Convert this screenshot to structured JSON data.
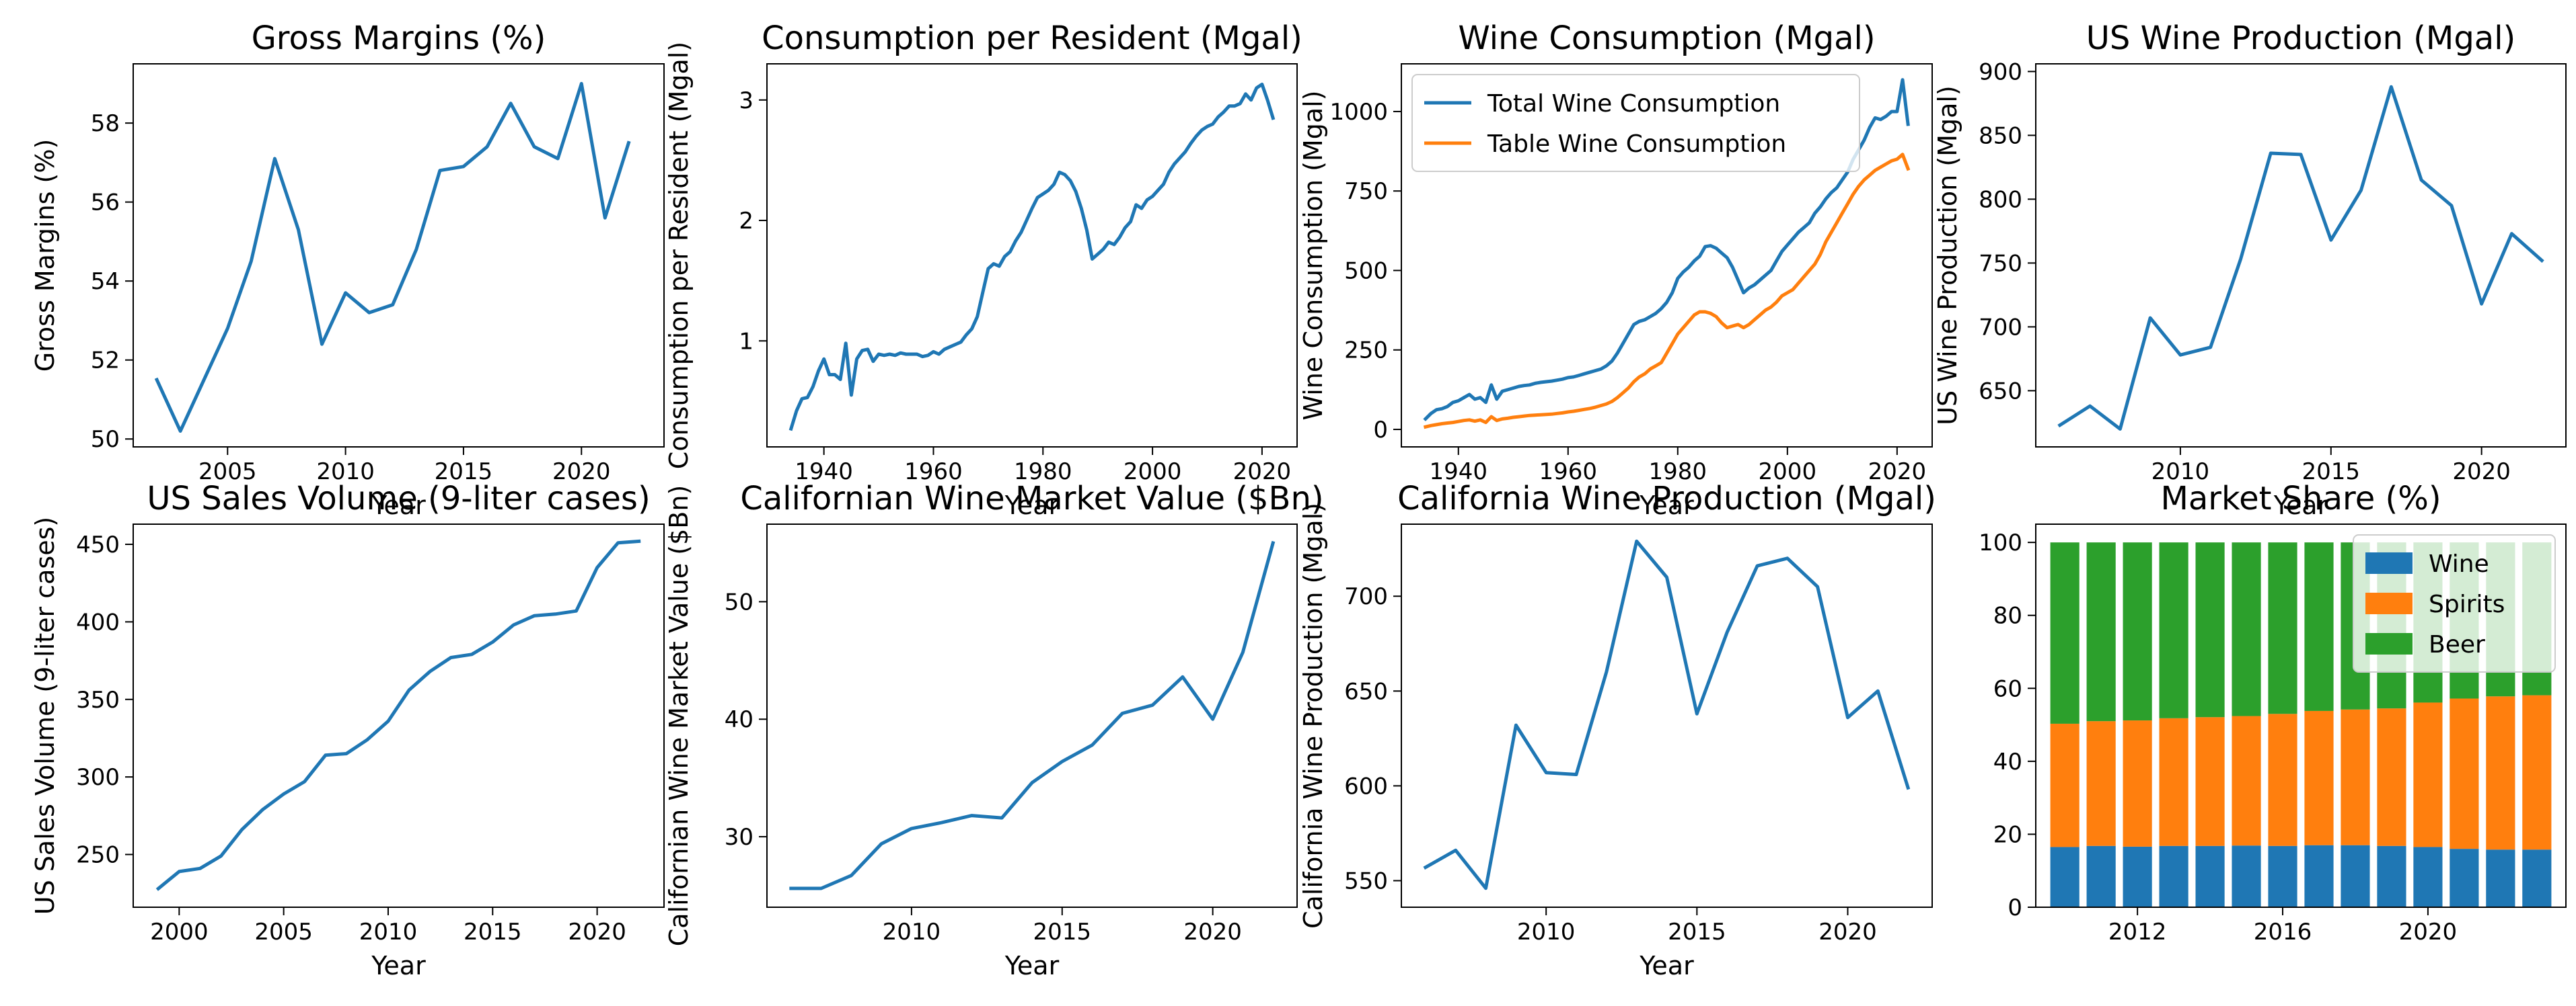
{
  "colors": {
    "c0": "#1f77b4",
    "c1": "#ff7f0e",
    "c2": "#2ca02c"
  },
  "chart_data": [
    {
      "type": "line",
      "title": "Gross Margins (%)",
      "xlabel": "Year",
      "ylabel": "Gross Margins (%)",
      "xlim": [
        2001,
        2023.5
      ],
      "ylim": [
        49.8,
        59.5
      ],
      "xticks": [
        2005,
        2010,
        2015,
        2020
      ],
      "yticks": [
        50,
        52,
        54,
        56,
        58
      ],
      "series": [
        {
          "color": "#1f77b4",
          "x": [
            2002,
            2003,
            2004,
            2005,
            2006,
            2007,
            2008,
            2009,
            2010,
            2011,
            2012,
            2013,
            2014,
            2015,
            2016,
            2017,
            2018,
            2019,
            2020,
            2021,
            2022
          ],
          "y": [
            51.5,
            50.2,
            51.5,
            52.8,
            54.5,
            57.1,
            55.3,
            52.4,
            53.7,
            53.2,
            53.4,
            54.8,
            56.8,
            56.9,
            57.4,
            58.5,
            57.4,
            57.1,
            59.0,
            55.6,
            57.5
          ]
        }
      ]
    },
    {
      "type": "line",
      "title": "Consumption per Resident (Mgal)",
      "xlabel": "Year",
      "ylabel": "Consumption per Resident (Mgal)",
      "xlim": [
        1929.6,
        2026.4
      ],
      "ylim": [
        0.12,
        3.3
      ],
      "xticks": [
        1940,
        1960,
        1980,
        2000,
        2020
      ],
      "yticks": [
        1,
        2,
        3
      ],
      "series": [
        {
          "color": "#1f77b4",
          "x": [
            1934,
            1935,
            1936,
            1937,
            1938,
            1939,
            1940,
            1941,
            1942,
            1943,
            1944,
            1945,
            1946,
            1947,
            1948,
            1949,
            1950,
            1951,
            1952,
            1953,
            1954,
            1955,
            1956,
            1957,
            1958,
            1959,
            1960,
            1961,
            1962,
            1963,
            1964,
            1965,
            1966,
            1967,
            1968,
            1969,
            1970,
            1971,
            1972,
            1973,
            1974,
            1975,
            1976,
            1977,
            1978,
            1979,
            1980,
            1981,
            1982,
            1983,
            1984,
            1985,
            1986,
            1987,
            1988,
            1989,
            1990,
            1991,
            1992,
            1993,
            1994,
            1995,
            1996,
            1997,
            1998,
            1999,
            2000,
            2001,
            2002,
            2003,
            2004,
            2005,
            2006,
            2007,
            2008,
            2009,
            2010,
            2011,
            2012,
            2013,
            2014,
            2015,
            2016,
            2017,
            2018,
            2019,
            2020,
            2021,
            2022
          ],
          "y": [
            0.27,
            0.42,
            0.52,
            0.53,
            0.62,
            0.75,
            0.85,
            0.72,
            0.72,
            0.68,
            0.98,
            0.55,
            0.85,
            0.92,
            0.93,
            0.83,
            0.89,
            0.88,
            0.89,
            0.88,
            0.9,
            0.89,
            0.89,
            0.89,
            0.87,
            0.88,
            0.91,
            0.89,
            0.93,
            0.95,
            0.97,
            0.99,
            1.05,
            1.1,
            1.2,
            1.4,
            1.6,
            1.64,
            1.62,
            1.7,
            1.74,
            1.83,
            1.9,
            2.0,
            2.1,
            2.19,
            2.22,
            2.25,
            2.3,
            2.4,
            2.38,
            2.33,
            2.24,
            2.1,
            1.92,
            1.68,
            1.72,
            1.76,
            1.82,
            1.8,
            1.86,
            1.94,
            1.99,
            2.13,
            2.1,
            2.17,
            2.2,
            2.25,
            2.3,
            2.4,
            2.47,
            2.52,
            2.57,
            2.64,
            2.7,
            2.75,
            2.78,
            2.8,
            2.86,
            2.9,
            2.95,
            2.95,
            2.97,
            3.05,
            3.0,
            3.1,
            3.13,
            3.0,
            2.85
          ]
        }
      ]
    },
    {
      "type": "line",
      "title": "Wine Consumption (Mgal)",
      "xlabel": "Year",
      "ylabel": "Wine Consumption (Mgal)",
      "xlim": [
        1929.6,
        2026.4
      ],
      "ylim": [
        -55,
        1150
      ],
      "xticks": [
        1940,
        1960,
        1980,
        2000,
        2020
      ],
      "yticks": [
        0,
        250,
        500,
        750,
        1000
      ],
      "legend": "top-left",
      "series": [
        {
          "name": "Total Wine Consumption",
          "color": "#1f77b4",
          "x": [
            1934,
            1935,
            1936,
            1937,
            1938,
            1939,
            1940,
            1941,
            1942,
            1943,
            1944,
            1945,
            1946,
            1947,
            1948,
            1949,
            1950,
            1951,
            1952,
            1953,
            1954,
            1955,
            1956,
            1957,
            1958,
            1959,
            1960,
            1961,
            1962,
            1963,
            1964,
            1965,
            1966,
            1967,
            1968,
            1969,
            1970,
            1971,
            1972,
            1973,
            1974,
            1975,
            1976,
            1977,
            1978,
            1979,
            1980,
            1981,
            1982,
            1983,
            1984,
            1985,
            1986,
            1987,
            1988,
            1989,
            1990,
            1991,
            1992,
            1993,
            1994,
            1995,
            1996,
            1997,
            1998,
            1999,
            2000,
            2001,
            2002,
            2003,
            2004,
            2005,
            2006,
            2007,
            2008,
            2009,
            2010,
            2011,
            2012,
            2013,
            2014,
            2015,
            2016,
            2017,
            2018,
            2019,
            2020,
            2021,
            2022
          ],
          "y": [
            33,
            50,
            62,
            65,
            72,
            85,
            90,
            100,
            110,
            95,
            100,
            85,
            140,
            95,
            120,
            125,
            130,
            135,
            138,
            140,
            145,
            148,
            150,
            152,
            155,
            158,
            163,
            165,
            170,
            175,
            180,
            185,
            190,
            200,
            215,
            240,
            270,
            300,
            330,
            340,
            345,
            355,
            365,
            380,
            400,
            430,
            475,
            495,
            510,
            530,
            545,
            575,
            578,
            570,
            555,
            540,
            510,
            470,
            430,
            445,
            455,
            470,
            485,
            500,
            530,
            560,
            580,
            600,
            620,
            635,
            650,
            680,
            700,
            725,
            745,
            760,
            785,
            810,
            850,
            880,
            910,
            950,
            980,
            975,
            985,
            1000,
            1000,
            1100,
            960
          ]
        },
        {
          "name": "Table Wine Consumption",
          "color": "#ff7f0e",
          "x": [
            1934,
            1935,
            1936,
            1937,
            1938,
            1939,
            1940,
            1941,
            1942,
            1943,
            1944,
            1945,
            1946,
            1947,
            1948,
            1949,
            1950,
            1951,
            1952,
            1953,
            1954,
            1955,
            1956,
            1957,
            1958,
            1959,
            1960,
            1961,
            1962,
            1963,
            1964,
            1965,
            1966,
            1967,
            1968,
            1969,
            1970,
            1971,
            1972,
            1973,
            1974,
            1975,
            1976,
            1977,
            1978,
            1979,
            1980,
            1981,
            1982,
            1983,
            1984,
            1985,
            1986,
            1987,
            1988,
            1989,
            1990,
            1991,
            1992,
            1993,
            1994,
            1995,
            1996,
            1997,
            1998,
            1999,
            2000,
            2001,
            2002,
            2003,
            2004,
            2005,
            2006,
            2007,
            2008,
            2009,
            2010,
            2011,
            2012,
            2013,
            2014,
            2015,
            2016,
            2017,
            2018,
            2019,
            2020,
            2021,
            2022
          ],
          "y": [
            8,
            12,
            15,
            18,
            20,
            22,
            25,
            28,
            30,
            26,
            30,
            22,
            40,
            28,
            33,
            35,
            38,
            40,
            42,
            44,
            45,
            46,
            47,
            48,
            50,
            52,
            55,
            57,
            60,
            63,
            66,
            70,
            75,
            80,
            88,
            100,
            115,
            130,
            150,
            165,
            175,
            190,
            200,
            210,
            240,
            270,
            300,
            320,
            340,
            360,
            370,
            370,
            365,
            355,
            335,
            320,
            325,
            330,
            320,
            330,
            345,
            360,
            375,
            385,
            400,
            420,
            430,
            440,
            460,
            480,
            500,
            520,
            550,
            590,
            620,
            650,
            680,
            710,
            740,
            765,
            785,
            800,
            815,
            825,
            835,
            845,
            850,
            865,
            820
          ]
        }
      ]
    },
    {
      "type": "line",
      "title": "US Wine Production (Mgal)",
      "xlabel": "Year",
      "ylabel": "US Wine Production (Mgal)",
      "xlim": [
        2005.2,
        2022.8
      ],
      "ylim": [
        606,
        906
      ],
      "xticks": [
        2010,
        2015,
        2020
      ],
      "yticks": [
        650,
        700,
        750,
        800,
        850,
        900
      ],
      "series": [
        {
          "color": "#1f77b4",
          "x": [
            2006,
            2007,
            2008,
            2009,
            2010,
            2011,
            2012,
            2013,
            2014,
            2015,
            2016,
            2017,
            2018,
            2019,
            2020,
            2021,
            2022
          ],
          "y": [
            623,
            638,
            620,
            707,
            678,
            684,
            753,
            836,
            835,
            768,
            807,
            888,
            815,
            795,
            718,
            773,
            752
          ]
        }
      ]
    },
    {
      "type": "line",
      "title": "US Sales Volume (9-liter cases)",
      "xlabel": "Year",
      "ylabel": "US Sales Volume (9-liter cases)",
      "xlim": [
        1997.8,
        2023.2
      ],
      "ylim": [
        216,
        463
      ],
      "xticks": [
        2000,
        2005,
        2010,
        2015,
        2020
      ],
      "yticks": [
        250,
        300,
        350,
        400,
        450
      ],
      "series": [
        {
          "color": "#1f77b4",
          "x": [
            1999,
            2000,
            2001,
            2002,
            2003,
            2004,
            2005,
            2006,
            2007,
            2008,
            2009,
            2010,
            2011,
            2012,
            2013,
            2014,
            2015,
            2016,
            2017,
            2018,
            2019,
            2020,
            2021,
            2022
          ],
          "y": [
            228,
            239,
            241,
            249,
            266,
            279,
            289,
            297,
            314,
            315,
            324,
            336,
            356,
            368,
            377,
            379,
            387,
            398,
            404,
            405,
            407,
            435,
            451,
            452
          ]
        }
      ]
    },
    {
      "type": "line",
      "title": "Californian Wine Market Value ($Bn)",
      "xlabel": "Year",
      "ylabel": "Californian Wine Market Value ($Bn)",
      "xlim": [
        2005.2,
        2022.8
      ],
      "ylim": [
        24.0,
        56.6
      ],
      "xticks": [
        2010,
        2015,
        2020
      ],
      "yticks": [
        30,
        40,
        50
      ],
      "series": [
        {
          "color": "#1f77b4",
          "x": [
            2006,
            2007,
            2008,
            2009,
            2010,
            2011,
            2012,
            2013,
            2014,
            2015,
            2016,
            2017,
            2018,
            2019,
            2020,
            2021,
            2022
          ],
          "y": [
            25.6,
            25.6,
            26.7,
            29.4,
            30.7,
            31.2,
            31.8,
            31.6,
            34.6,
            36.4,
            37.8,
            40.5,
            41.2,
            43.6,
            40.0,
            45.7,
            55.0
          ]
        }
      ]
    },
    {
      "type": "line",
      "title": "California Wine Production (Mgal)",
      "xlabel": "Year",
      "ylabel": "California Wine Production (Mgal)",
      "xlim": [
        2005.2,
        2022.8
      ],
      "ylim": [
        536,
        738
      ],
      "xticks": [
        2010,
        2015,
        2020
      ],
      "yticks": [
        550,
        600,
        650,
        700
      ],
      "series": [
        {
          "color": "#1f77b4",
          "x": [
            2006,
            2007,
            2008,
            2009,
            2010,
            2011,
            2012,
            2013,
            2014,
            2015,
            2016,
            2017,
            2018,
            2019,
            2020,
            2021,
            2022
          ],
          "y": [
            557,
            566,
            546,
            632,
            607,
            606,
            660,
            729,
            710,
            638,
            681,
            716,
            720,
            705,
            636,
            650,
            599
          ]
        }
      ]
    },
    {
      "type": "bar",
      "stacked": true,
      "title": "Market Share (%)",
      "xlim": [
        2009.2,
        2023.8
      ],
      "ylim": [
        0,
        105
      ],
      "xticks": [
        2012,
        2016,
        2020
      ],
      "yticks": [
        0,
        20,
        40,
        60,
        80,
        100
      ],
      "legend": "top-right",
      "categories": [
        2010,
        2011,
        2012,
        2013,
        2014,
        2015,
        2016,
        2017,
        2018,
        2019,
        2020,
        2021,
        2022,
        2023
      ],
      "series": [
        {
          "name": "Wine",
          "color": "#1f77b4",
          "values": [
            16.5,
            16.8,
            16.6,
            16.8,
            16.8,
            16.9,
            16.8,
            17.0,
            17.0,
            16.8,
            16.5,
            16.0,
            15.8,
            15.8
          ]
        },
        {
          "name": "Spirits",
          "color": "#ff7f0e",
          "values": [
            33.8,
            34.2,
            34.6,
            35.0,
            35.3,
            35.5,
            36.2,
            36.8,
            37.2,
            37.7,
            39.6,
            41.2,
            42.0,
            42.3
          ]
        },
        {
          "name": "Beer",
          "color": "#2ca02c",
          "values": [
            49.7,
            49.0,
            48.8,
            48.2,
            47.9,
            47.6,
            47.0,
            46.2,
            45.8,
            45.5,
            43.9,
            42.8,
            42.2,
            41.9
          ]
        }
      ]
    }
  ]
}
